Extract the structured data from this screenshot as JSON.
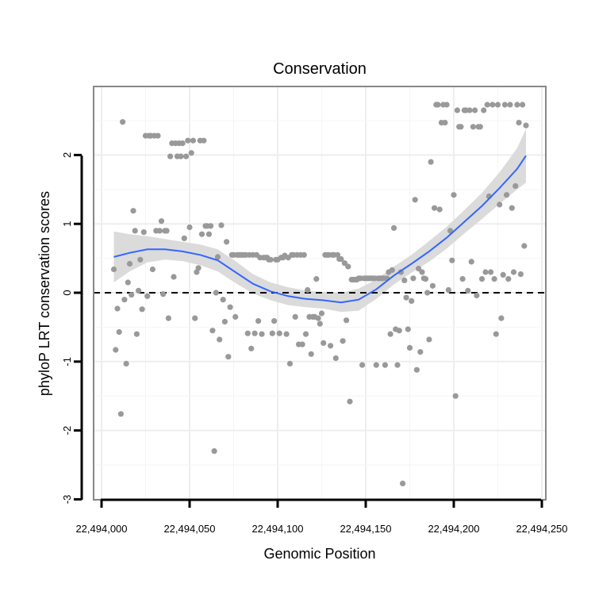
{
  "chart_data": {
    "type": "scatter",
    "title": "Conservation",
    "xlabel": "Genomic Position",
    "ylabel": "phyloP LRT conservation scores",
    "xlim": [
      22493995,
      22494243
    ],
    "ylim": [
      -2.97,
      3.0
    ],
    "x_ticks": [
      22494000,
      22494050,
      22494100,
      22494150,
      22494200,
      22494250
    ],
    "x_tick_labels": [
      "22,494,000",
      "22,494,050",
      "22,494,100",
      "22,494,150",
      "22,494,200",
      "22,494,250"
    ],
    "y_ticks": [
      -3,
      -2,
      -1,
      0,
      1,
      2
    ],
    "y_tick_labels": [
      "-3",
      "-2",
      "-1",
      "0",
      "1",
      "2"
    ],
    "reference_line": {
      "y": 0,
      "style": "dashed"
    },
    "grid": true,
    "colors": {
      "points": "#999999",
      "smooth": "#3366FF",
      "ribbon": "#D9D9D9",
      "grid": "#EEEEEE",
      "border": "#888888",
      "background": "#FFFFFF"
    },
    "series": [
      {
        "name": "phyloP scores",
        "points": [
          [
            22494007,
            0.34
          ],
          [
            22494008,
            -0.83
          ],
          [
            22494009,
            -0.23
          ],
          [
            22494010,
            -0.57
          ],
          [
            22494011,
            -1.76
          ],
          [
            22494012,
            2.48
          ],
          [
            22494013,
            -0.1
          ],
          [
            22494014,
            -1.03
          ],
          [
            22494015,
            0.15
          ],
          [
            22494016,
            0.42
          ],
          [
            22494017,
            -0.03
          ],
          [
            22494018,
            1.19
          ],
          [
            22494019,
            0.9
          ],
          [
            22494020,
            -0.6
          ],
          [
            22494021,
            0.03
          ],
          [
            22494022,
            0.48
          ],
          [
            22494023,
            -0.24
          ],
          [
            22494024,
            0.88
          ],
          [
            22494025,
            2.28
          ],
          [
            22494026,
            -0.05
          ],
          [
            22494027,
            2.28
          ],
          [
            22494028,
            2.28
          ],
          [
            22494029,
            0.34
          ],
          [
            22494030,
            2.28
          ],
          [
            22494031,
            0.9
          ],
          [
            22494032,
            2.28
          ],
          [
            22494033,
            0.9
          ],
          [
            22494034,
            1.04
          ],
          [
            22494035,
            -0.02
          ],
          [
            22494036,
            0.9
          ],
          [
            22494037,
            0.9
          ],
          [
            22494038,
            -0.37
          ],
          [
            22494039,
            1.98
          ],
          [
            22494040,
            2.17
          ],
          [
            22494041,
            0.23
          ],
          [
            22494042,
            2.17
          ],
          [
            22494043,
            1.98
          ],
          [
            22494044,
            2.17
          ],
          [
            22494045,
            1.98
          ],
          [
            22494046,
            2.17
          ],
          [
            22494047,
            0.79
          ],
          [
            22494048,
            1.98
          ],
          [
            22494049,
            2.21
          ],
          [
            22494050,
            0.95
          ],
          [
            22494051,
            2.03
          ],
          [
            22494052,
            2.21
          ],
          [
            22494053,
            -0.37
          ],
          [
            22494054,
            0.3
          ],
          [
            22494055,
            0.36
          ],
          [
            22494056,
            2.21
          ],
          [
            22494057,
            0.85
          ],
          [
            22494058,
            2.21
          ],
          [
            22494059,
            0.97
          ],
          [
            22494060,
            0.97
          ],
          [
            22494061,
            0.85
          ],
          [
            22494062,
            0.97
          ],
          [
            22494063,
            -0.55
          ],
          [
            22494064,
            -2.3
          ],
          [
            22494065,
            0.0
          ],
          [
            22494066,
            0.52
          ],
          [
            22494067,
            -0.68
          ],
          [
            22494068,
            0.98
          ],
          [
            22494069,
            -0.1
          ],
          [
            22494070,
            -0.42
          ],
          [
            22494071,
            0.74
          ],
          [
            22494072,
            -0.93
          ],
          [
            22494073,
            -0.21
          ],
          [
            22494074,
            0.55
          ],
          [
            22494075,
            0.55
          ],
          [
            22494076,
            -0.35
          ],
          [
            22494077,
            0.55
          ],
          [
            22494078,
            0.55
          ],
          [
            22494079,
            0.55
          ],
          [
            22494080,
            0.55
          ],
          [
            22494081,
            0.55
          ],
          [
            22494082,
            0.55
          ],
          [
            22494083,
            -0.59
          ],
          [
            22494084,
            0.55
          ],
          [
            22494085,
            -0.81
          ],
          [
            22494086,
            0.55
          ],
          [
            22494087,
            -0.59
          ],
          [
            22494088,
            0.55
          ],
          [
            22494089,
            -0.41
          ],
          [
            22494090,
            0.51
          ],
          [
            22494091,
            -0.6
          ],
          [
            22494092,
            0.51
          ],
          [
            22494093,
            0.51
          ],
          [
            22494094,
            0.51
          ],
          [
            22494095,
            0.48
          ],
          [
            22494096,
            0.48
          ],
          [
            22494097,
            -0.59
          ],
          [
            22494098,
            -0.41
          ],
          [
            22494099,
            0.48
          ],
          [
            22494100,
            0.48
          ],
          [
            22494101,
            -0.59
          ],
          [
            22494102,
            0.51
          ],
          [
            22494103,
            0.51
          ],
          [
            22494104,
            0.54
          ],
          [
            22494105,
            -0.6
          ],
          [
            22494106,
            0.51
          ],
          [
            22494107,
            -1.03
          ],
          [
            22494108,
            0.55
          ],
          [
            22494109,
            0.55
          ],
          [
            22494110,
            -0.35
          ],
          [
            22494111,
            0.55
          ],
          [
            22494112,
            -0.75
          ],
          [
            22494113,
            0.55
          ],
          [
            22494114,
            -0.75
          ],
          [
            22494115,
            0.55
          ],
          [
            22494116,
            -0.6
          ],
          [
            22494117,
            0.04
          ],
          [
            22494118,
            -0.35
          ],
          [
            22494119,
            -0.89
          ],
          [
            22494120,
            -0.35
          ],
          [
            22494121,
            -0.35
          ],
          [
            22494122,
            0.2
          ],
          [
            22494123,
            -0.37
          ],
          [
            22494124,
            -0.45
          ],
          [
            22494125,
            -0.3
          ],
          [
            22494126,
            -0.73
          ],
          [
            22494127,
            0.55
          ],
          [
            22494128,
            0.55
          ],
          [
            22494129,
            0.55
          ],
          [
            22494130,
            -0.77
          ],
          [
            22494131,
            0.55
          ],
          [
            22494132,
            0.55
          ],
          [
            22494133,
            -0.95
          ],
          [
            22494134,
            0.55
          ],
          [
            22494135,
            0.49
          ],
          [
            22494136,
            0.49
          ],
          [
            22494137,
            -0.7
          ],
          [
            22494138,
            0.43
          ],
          [
            22494139,
            -0.4
          ],
          [
            22494140,
            0.38
          ],
          [
            22494141,
            -1.58
          ],
          [
            22494142,
            0.19
          ],
          [
            22494143,
            0.19
          ],
          [
            22494144,
            0.19
          ],
          [
            22494145,
            0.19
          ],
          [
            22494146,
            0.21
          ],
          [
            22494147,
            0.21
          ],
          [
            22494148,
            -1.05
          ],
          [
            22494149,
            0.21
          ],
          [
            22494150,
            0.21
          ],
          [
            22494151,
            0.21
          ],
          [
            22494152,
            0.21
          ],
          [
            22494153,
            0.21
          ],
          [
            22494154,
            0.21
          ],
          [
            22494155,
            0.21
          ],
          [
            22494156,
            -1.05
          ],
          [
            22494157,
            0.21
          ],
          [
            22494158,
            0.21
          ],
          [
            22494159,
            0.21
          ],
          [
            22494160,
            0.21
          ],
          [
            22494161,
            -1.05
          ],
          [
            22494162,
            0.21
          ],
          [
            22494163,
            0.3
          ],
          [
            22494164,
            -0.6
          ],
          [
            22494165,
            0.33
          ],
          [
            22494166,
            0.94
          ],
          [
            22494167,
            -0.53
          ],
          [
            22494168,
            -1.05
          ],
          [
            22494169,
            -0.55
          ],
          [
            22494170,
            0.3
          ],
          [
            22494171,
            -2.77
          ],
          [
            22494172,
            0.18
          ],
          [
            22494173,
            -0.07
          ],
          [
            22494174,
            -0.53
          ],
          [
            22494175,
            -0.8
          ],
          [
            22494176,
            -0.12
          ],
          [
            22494177,
            0.21
          ],
          [
            22494178,
            1.35
          ],
          [
            22494179,
            -1.12
          ],
          [
            22494180,
            0.35
          ],
          [
            22494181,
            -0.86
          ],
          [
            22494182,
            0.3
          ],
          [
            22494183,
            0.21
          ],
          [
            22494184,
            0.2
          ],
          [
            22494185,
            0.0
          ],
          [
            22494186,
            -0.68
          ],
          [
            22494187,
            1.9
          ],
          [
            22494188,
            0.1
          ],
          [
            22494189,
            1.23
          ],
          [
            22494190,
            2.73
          ],
          [
            22494191,
            2.73
          ],
          [
            22494192,
            1.21
          ],
          [
            22494193,
            2.47
          ],
          [
            22494194,
            2.73
          ],
          [
            22494195,
            2.47
          ],
          [
            22494196,
            2.73
          ],
          [
            22494197,
            0.04
          ],
          [
            22494198,
            0.9
          ],
          [
            22494199,
            0.47
          ],
          [
            22494200,
            1.42
          ],
          [
            22494201,
            -1.5
          ],
          [
            22494202,
            2.65
          ],
          [
            22494203,
            2.41
          ],
          [
            22494204,
            2.41
          ],
          [
            22494205,
            0.2
          ],
          [
            22494206,
            2.65
          ],
          [
            22494207,
            2.65
          ],
          [
            22494208,
            0.03
          ],
          [
            22494209,
            2.65
          ],
          [
            22494210,
            0.45
          ],
          [
            22494211,
            2.41
          ],
          [
            22494212,
            2.65
          ],
          [
            22494213,
            -0.04
          ],
          [
            22494214,
            2.41
          ],
          [
            22494215,
            2.41
          ],
          [
            22494216,
            0.2
          ],
          [
            22494217,
            2.65
          ],
          [
            22494218,
            0.3
          ],
          [
            22494219,
            2.73
          ],
          [
            22494220,
            1.4
          ],
          [
            22494221,
            0.3
          ],
          [
            22494222,
            2.73
          ],
          [
            22494223,
            0.2
          ],
          [
            22494224,
            -0.6
          ],
          [
            22494225,
            2.73
          ],
          [
            22494226,
            1.28
          ],
          [
            22494227,
            -0.37
          ],
          [
            22494228,
            0.26
          ],
          [
            22494229,
            2.73
          ],
          [
            22494230,
            1.42
          ],
          [
            22494231,
            0.2
          ],
          [
            22494232,
            2.73
          ],
          [
            22494233,
            1.23
          ],
          [
            22494234,
            0.3
          ],
          [
            22494235,
            1.55
          ],
          [
            22494236,
            2.73
          ],
          [
            22494237,
            2.47
          ],
          [
            22494238,
            0.27
          ],
          [
            22494239,
            2.73
          ],
          [
            22494240,
            0.68
          ],
          [
            22494241,
            2.43
          ]
        ]
      }
    ],
    "smooth": {
      "method": "loess",
      "x": [
        22494007,
        22494016,
        22494026,
        22494036,
        22494046,
        22494056,
        22494066,
        22494076,
        22494086,
        22494096,
        22494106,
        22494116,
        22494126,
        22494136,
        22494146,
        22494156,
        22494166,
        22494176,
        22494186,
        22494196,
        22494206,
        22494216,
        22494226,
        22494236,
        22494241
      ],
      "y": [
        0.52,
        0.58,
        0.63,
        0.63,
        0.6,
        0.55,
        0.47,
        0.3,
        0.13,
        0.02,
        -0.05,
        -0.09,
        -0.11,
        -0.14,
        -0.1,
        0.05,
        0.25,
        0.42,
        0.6,
        0.8,
        1.03,
        1.26,
        1.52,
        1.8,
        1.99
      ],
      "lower": [
        0.15,
        0.31,
        0.44,
        0.48,
        0.46,
        0.4,
        0.31,
        0.14,
        -0.01,
        -0.11,
        -0.18,
        -0.21,
        -0.23,
        -0.28,
        -0.26,
        -0.09,
        0.12,
        0.29,
        0.45,
        0.64,
        0.86,
        1.07,
        1.29,
        1.5,
        1.6
      ],
      "upper": [
        0.89,
        0.85,
        0.82,
        0.78,
        0.74,
        0.7,
        0.63,
        0.46,
        0.27,
        0.15,
        0.08,
        0.03,
        0.01,
        0.0,
        0.06,
        0.19,
        0.38,
        0.55,
        0.75,
        0.96,
        1.2,
        1.45,
        1.75,
        2.1,
        2.38
      ]
    }
  }
}
